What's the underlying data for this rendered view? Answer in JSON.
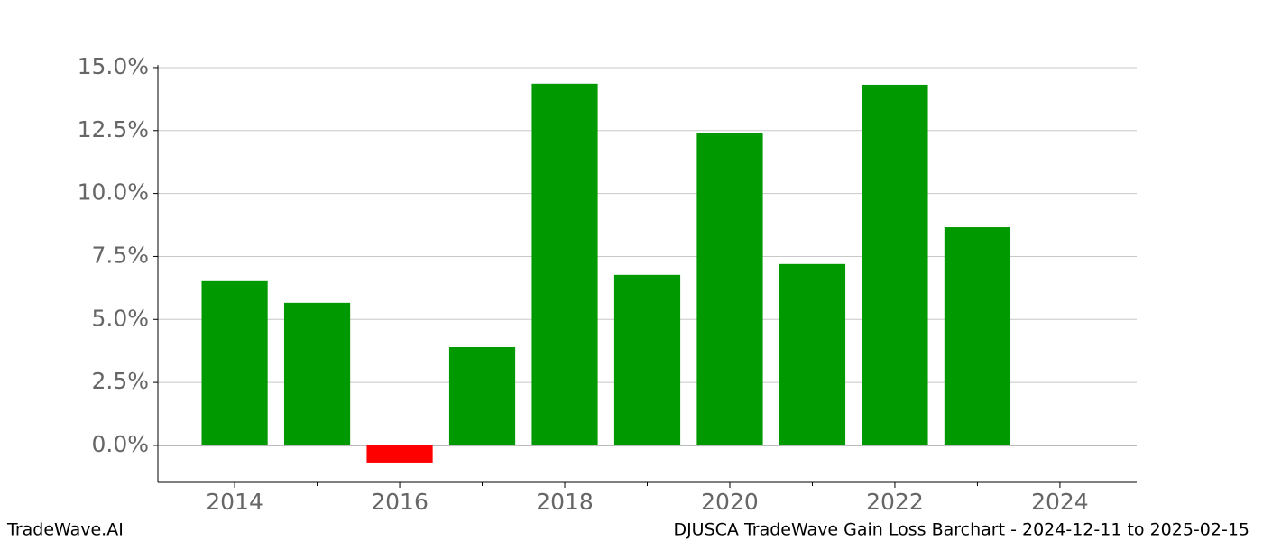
{
  "chart_data": {
    "type": "bar",
    "x": [
      2014,
      2015,
      2016,
      2017,
      2018,
      2019,
      2020,
      2021,
      2022,
      2023
    ],
    "values": [
      6.52,
      5.66,
      -0.68,
      3.9,
      14.36,
      6.77,
      12.42,
      7.2,
      14.32,
      8.66
    ],
    "positive_color": "#009900",
    "negative_color": "#ff0000",
    "xlim": [
      2013.07,
      2024.93
    ],
    "xticks": [
      2014,
      2016,
      2018,
      2020,
      2022,
      2024
    ],
    "xminorticks": [
      2015,
      2017,
      2019,
      2021,
      2023
    ],
    "ylim": [
      -1.47,
      15.1
    ],
    "yticks": [
      {
        "value": 0,
        "label": "0.0%"
      },
      {
        "value": 2.5,
        "label": "2.5%"
      },
      {
        "value": 5,
        "label": "5.0%"
      },
      {
        "value": 7.5,
        "label": "7.5%"
      },
      {
        "value": 10,
        "label": "10.0%"
      },
      {
        "value": 12.5,
        "label": "12.5%"
      },
      {
        "value": 15,
        "label": "15.0%"
      }
    ],
    "grid": true
  },
  "footer": {
    "left": "TradeWave.AI",
    "right": "DJUSCA TradeWave Gain Loss Barchart - 2024-12-11 to 2025-02-15"
  }
}
